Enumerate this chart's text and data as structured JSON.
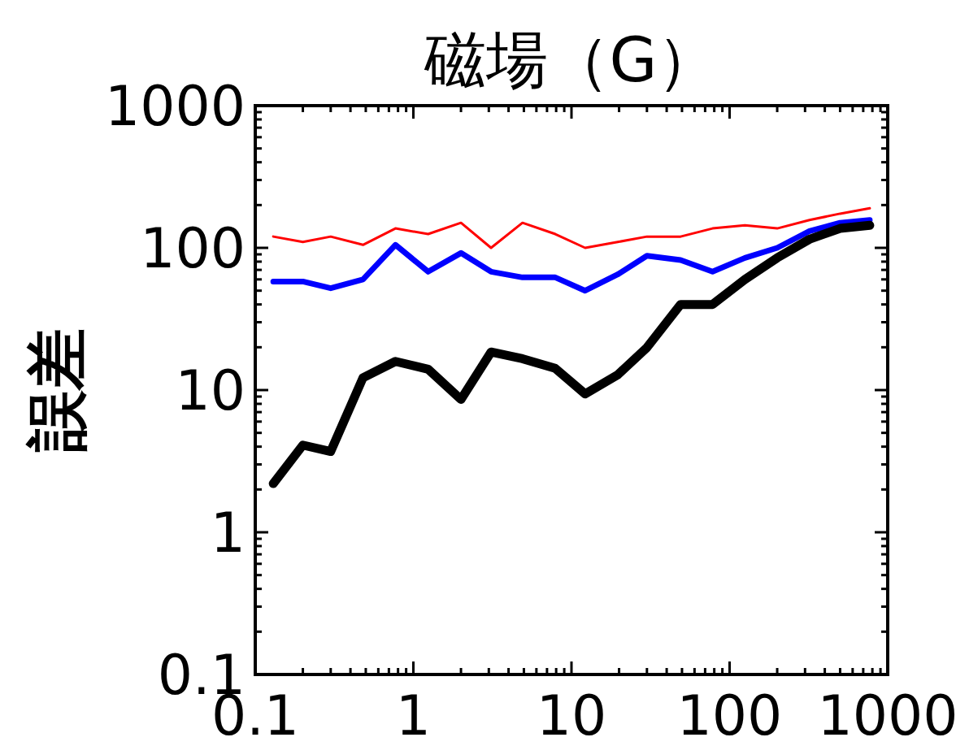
{
  "chart_data": {
    "type": "line",
    "title": "磁場（G）",
    "ylabel": "誤差",
    "log": "xy",
    "x": [
      0.13,
      0.2,
      0.3,
      0.48,
      0.77,
      1.24,
      2.0,
      3.1,
      4.9,
      7.9,
      12.2,
      19.6,
      30,
      49,
      78,
      125,
      200,
      320,
      500,
      770
    ],
    "xlim": [
      0.1,
      1000
    ],
    "ylim": [
      0.1,
      1000
    ],
    "xticks": [
      0.1,
      1,
      10,
      100,
      1000
    ],
    "yticks": [
      0.1,
      1,
      10,
      100,
      1000
    ],
    "series": [
      {
        "color": "#ff0000",
        "values": [
          120,
          110,
          120,
          105,
          137,
          125,
          150,
          100,
          150,
          125,
          100,
          110,
          120,
          120,
          137,
          144,
          137,
          157,
          174,
          190
        ]
      },
      {
        "color": "#0000ff",
        "values": [
          58,
          58,
          52,
          60,
          105,
          68,
          92,
          68,
          62,
          62,
          50,
          65,
          88,
          82,
          68,
          85,
          100,
          131,
          150,
          157
        ]
      },
      {
        "color": "#000000",
        "values": [
          2.2,
          4.1,
          3.7,
          12.2,
          15.9,
          14,
          8.6,
          18.5,
          16.6,
          14.2,
          9.4,
          12.8,
          19.9,
          40,
          40,
          60,
          85,
          115,
          137,
          144
        ]
      }
    ]
  }
}
